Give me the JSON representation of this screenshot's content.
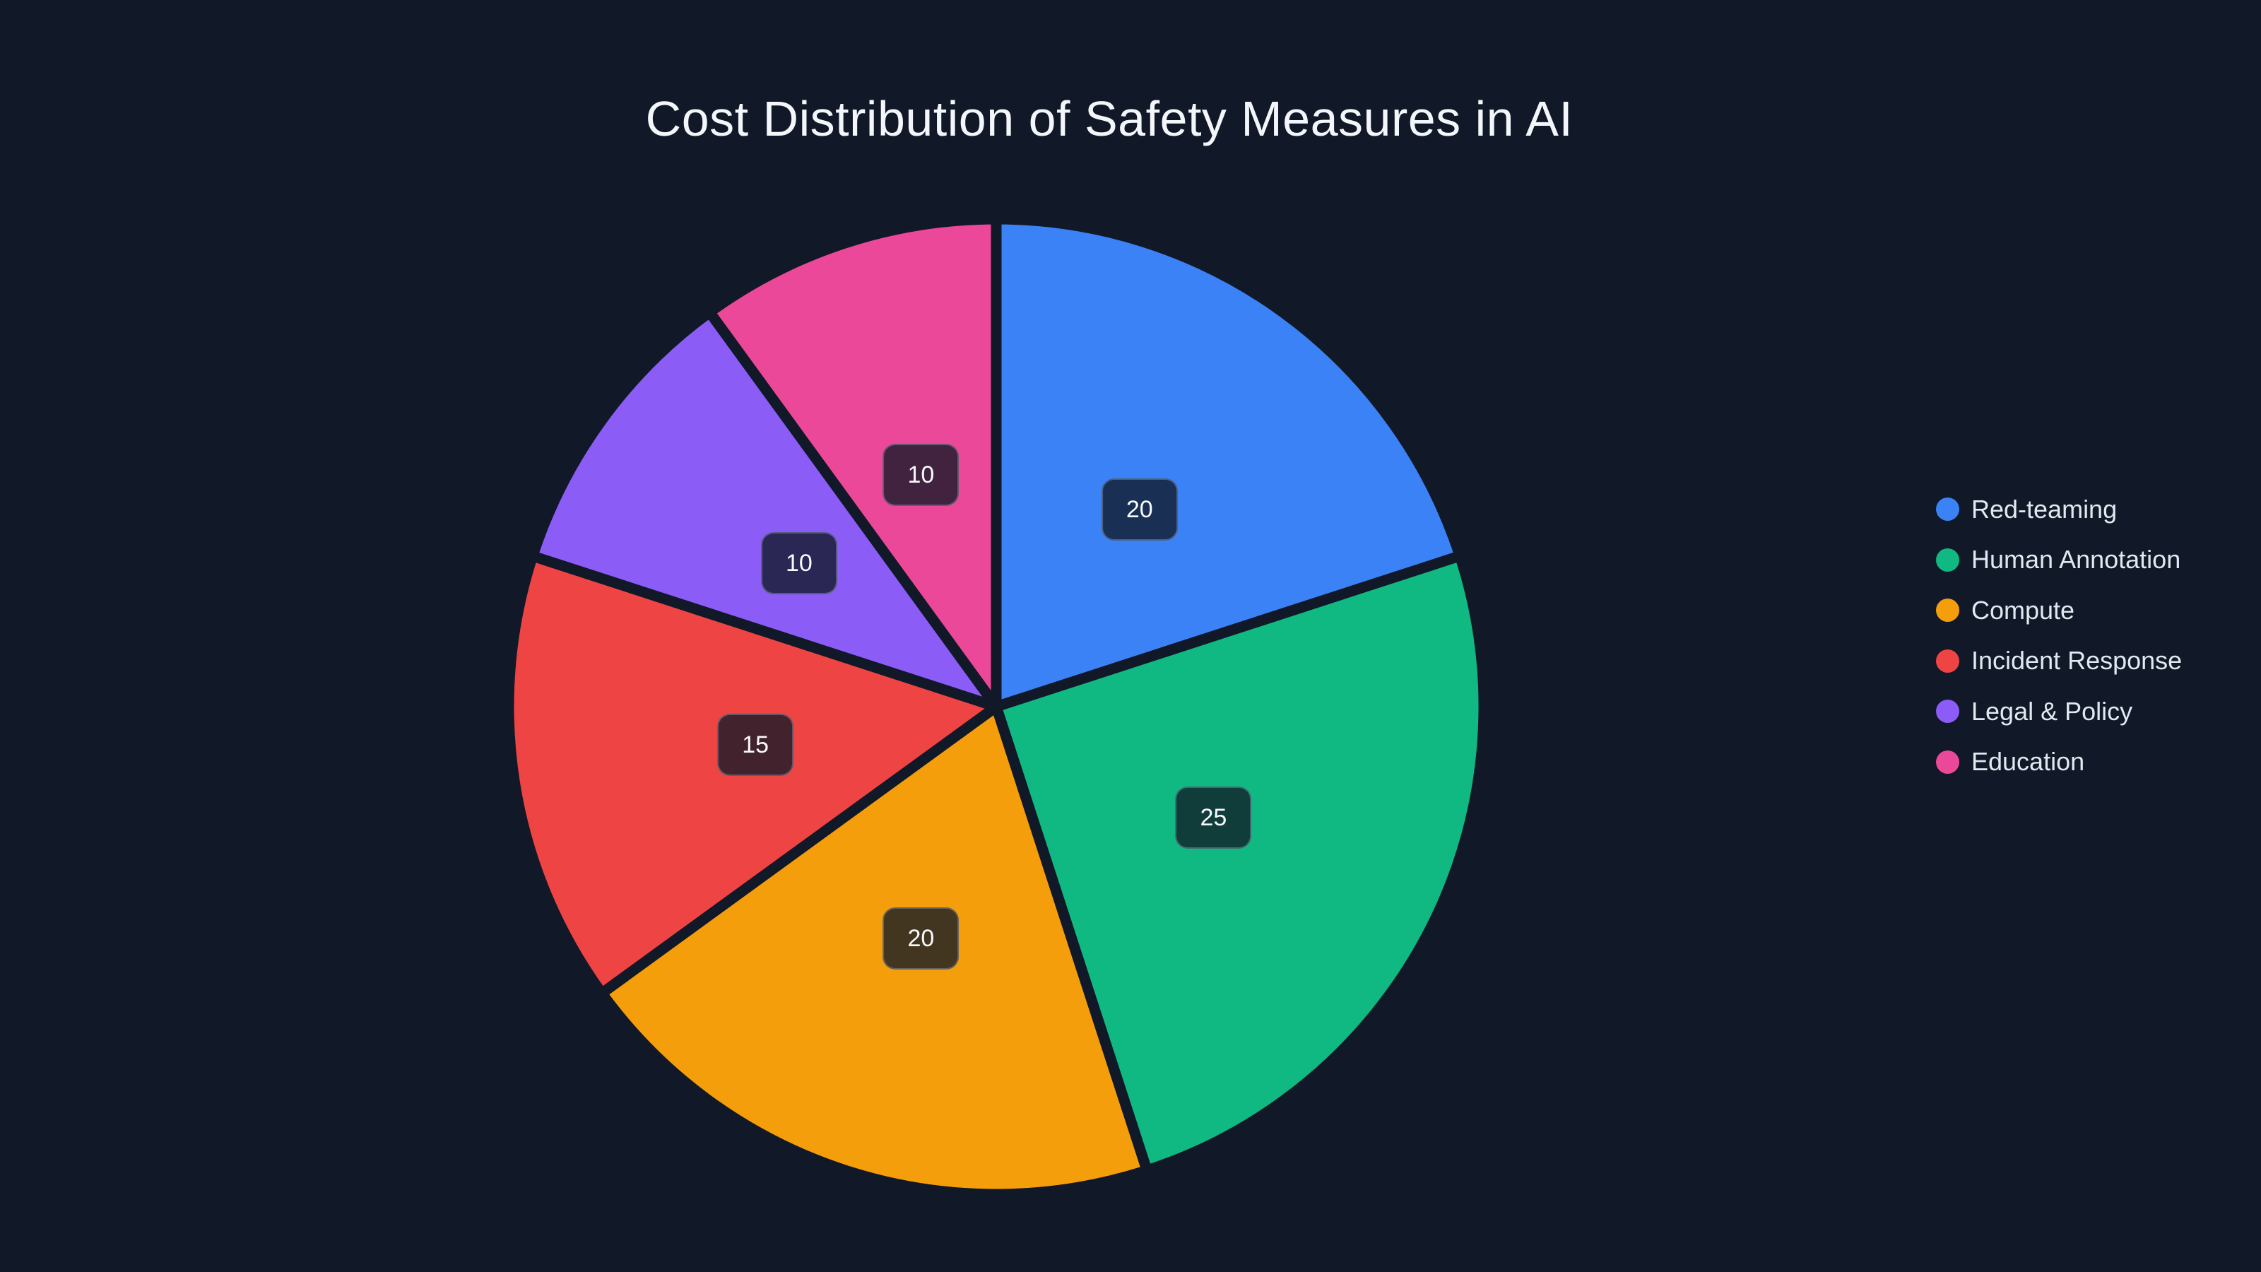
{
  "title": "Cost Distribution of Safety Measures in AI",
  "colors": {
    "background": "#111827",
    "title_text": "#f3f6fb",
    "legend_text": "#e2e8f0",
    "slice_label_text": "#f8fafc",
    "slice_label_bg": "rgba(17, 24, 39, 0.78)",
    "slice_label_border": "rgba(148, 163, 184, 0.42)",
    "slice_separator": "#111827"
  },
  "chart_data": {
    "type": "pie",
    "title": "Cost Distribution of Safety Measures in AI",
    "labels": [
      "Red-teaming",
      "Human Annotation",
      "Compute",
      "Incident Response",
      "Legal & Policy",
      "Education"
    ],
    "values": [
      20,
      25,
      20,
      15,
      10,
      10
    ],
    "slice_colors": [
      "#3b82f6",
      "#10b981",
      "#f59e0b",
      "#ef4444",
      "#8b5cf6",
      "#ec4899"
    ],
    "slice_value_labels": [
      "20",
      "25",
      "20",
      "15",
      "10",
      "10"
    ],
    "start_angle": "12 o'clock",
    "direction": "clockwise",
    "legend_position": "right"
  },
  "legend": {
    "items": [
      {
        "label": "Red-teaming",
        "color": "#3b82f6"
      },
      {
        "label": "Human Annotation",
        "color": "#10b981"
      },
      {
        "label": "Compute",
        "color": "#f59e0b"
      },
      {
        "label": "Incident Response",
        "color": "#ef4444"
      },
      {
        "label": "Legal & Policy",
        "color": "#8b5cf6"
      },
      {
        "label": "Education",
        "color": "#ec4899"
      }
    ]
  }
}
